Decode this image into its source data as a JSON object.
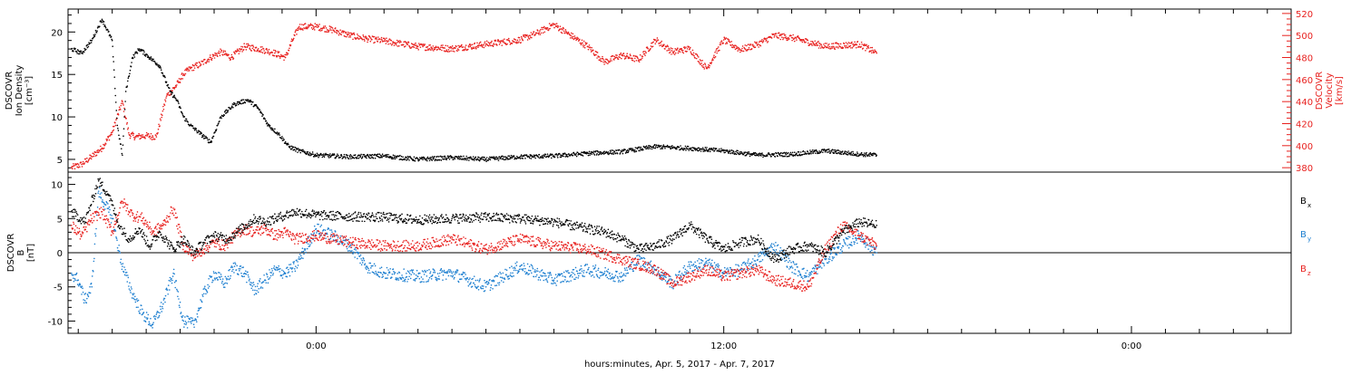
{
  "chart_data": [
    {
      "type": "scatter",
      "panel": "top",
      "xlabel": "hours:minutes, Apr.  5, 2017 - Apr.  7, 2017",
      "x_ticks": [
        "0:00",
        "12:00",
        "0:00"
      ],
      "x_range_hours": [
        -7.3,
        28.7
      ],
      "ylabel_left": [
        "DSCOVR",
        "Ion Density",
        "[cm⁻³]"
      ],
      "ylabel_right": [
        "DSCOVR",
        "Velocity",
        "[km/s]"
      ],
      "yticks_left": [
        5,
        10,
        15,
        20
      ],
      "ylim_left": [
        3.5,
        22.7
      ],
      "yticks_right": [
        380,
        400,
        420,
        440,
        460,
        480,
        500,
        520
      ],
      "ylim_right": [
        376,
        524
      ],
      "series": [
        {
          "name": "Ion Density",
          "axis": "left",
          "color": "#000000",
          "t": [
            -7.2,
            -6.9,
            -6.6,
            -6.3,
            -6.0,
            -5.85,
            -5.7,
            -5.6,
            -5.4,
            -5.2,
            -4.9,
            -4.6,
            -4.3,
            -4.1,
            -3.9,
            -3.7,
            -3.4,
            -3.1,
            -2.8,
            -2.4,
            -2.0,
            -1.7,
            -1.4,
            -1.1,
            -0.8,
            -0.5,
            0.0,
            1.0,
            2.0,
            3.0,
            4.0,
            5.0,
            6.0,
            7.0,
            8.0,
            9.0,
            10.0,
            11.0,
            12.0,
            13.0,
            14.0,
            15.0,
            16.0,
            16.5
          ],
          "v": [
            18,
            17.5,
            19,
            21.5,
            19,
            9,
            5.5,
            13,
            17,
            18,
            17,
            16,
            13,
            12,
            10,
            9,
            8,
            7,
            10,
            11.5,
            12,
            11,
            9,
            8,
            6.5,
            6,
            5.5,
            5.3,
            5.4,
            5.0,
            5.2,
            5.0,
            5.3,
            5.4,
            5.7,
            5.9,
            6.5,
            6.3,
            6.0,
            5.5,
            5.6,
            6.0,
            5.6,
            5.5
          ]
        },
        {
          "name": "Velocity",
          "axis": "right",
          "color": "#e8201e",
          "t": [
            -7.2,
            -6.9,
            -6.6,
            -6.3,
            -6.0,
            -5.7,
            -5.5,
            -5.3,
            -5.0,
            -4.7,
            -4.4,
            -4.1,
            -3.9,
            -3.7,
            -3.4,
            -3.1,
            -2.8,
            -2.5,
            -2.1,
            -1.7,
            -1.3,
            -0.9,
            -0.7,
            -0.5,
            0.0,
            0.5,
            1.0,
            1.5,
            2.0,
            3.0,
            4.0,
            5.0,
            6.0,
            6.5,
            7.0,
            7.5,
            8.0,
            8.5,
            9.0,
            9.5,
            10.0,
            10.5,
            11.0,
            11.5,
            12.0,
            12.5,
            13.0,
            13.5,
            14.0,
            15.0,
            16.0,
            16.5
          ],
          "v": [
            380,
            383,
            390,
            398,
            412,
            440,
            410,
            408,
            409,
            408,
            445,
            455,
            465,
            470,
            474,
            480,
            485,
            480,
            490,
            488,
            485,
            480,
            495,
            508,
            508,
            505,
            500,
            497,
            495,
            490,
            488,
            492,
            496,
            502,
            510,
            500,
            490,
            476,
            482,
            478,
            496,
            485,
            488,
            470,
            496,
            487,
            492,
            500,
            498,
            490,
            492,
            484
          ]
        }
      ]
    },
    {
      "type": "scatter",
      "panel": "bottom",
      "xlabel": "hours:minutes, Apr.  5, 2017 - Apr.  7, 2017",
      "x_ticks": [
        "0:00",
        "12:00",
        "0:00"
      ],
      "x_range_hours": [
        -7.3,
        28.7
      ],
      "ylabel": [
        "DSCOVR",
        "B",
        "[nT]"
      ],
      "yticks": [
        -10,
        -5,
        0,
        5,
        10
      ],
      "ylim": [
        -11.8,
        11.8
      ],
      "zero_line": true,
      "series": [
        {
          "name": "Bx",
          "color": "#000000",
          "t": [
            -7.2,
            -6.8,
            -6.4,
            -6.1,
            -5.8,
            -5.5,
            -5.2,
            -4.9,
            -4.6,
            -4.2,
            -3.9,
            -3.6,
            -3.3,
            -3.0,
            -2.6,
            -2.2,
            -1.8,
            -1.5,
            -1.2,
            -0.9,
            -0.6,
            0.0,
            1.0,
            2.0,
            3.0,
            4.0,
            5.0,
            6.0,
            7.0,
            8.0,
            8.5,
            9.0,
            9.5,
            10.0,
            10.5,
            11.0,
            11.5,
            12.0,
            12.5,
            13.0,
            13.5,
            14.0,
            14.5,
            15.0,
            15.5,
            16.0,
            16.5
          ],
          "v": [
            6.0,
            4.5,
            10.5,
            8.5,
            4.0,
            2.0,
            3.5,
            1.0,
            3.0,
            0.5,
            2.0,
            0.0,
            1.5,
            2.5,
            2.0,
            3.5,
            5.0,
            4.5,
            5.0,
            5.5,
            6.0,
            5.5,
            5.3,
            5.2,
            4.8,
            5.0,
            5.2,
            5.0,
            4.5,
            3.5,
            3.0,
            2.0,
            0.5,
            1.0,
            2.0,
            4.0,
            2.0,
            0.5,
            1.5,
            2.0,
            -1.0,
            0.5,
            1.0,
            0.0,
            3.0,
            4.5,
            4.0
          ]
        },
        {
          "name": "By",
          "color": "#1d7fd0",
          "t": [
            -7.2,
            -7.0,
            -6.8,
            -6.6,
            -6.4,
            -6.2,
            -6.0,
            -5.7,
            -5.4,
            -5.1,
            -4.8,
            -4.5,
            -4.2,
            -3.9,
            -3.6,
            -3.3,
            -3.0,
            -2.7,
            -2.4,
            -2.1,
            -1.8,
            -1.5,
            -1.2,
            -0.9,
            -0.6,
            0.0,
            0.5,
            1.0,
            1.5,
            2.0,
            3.0,
            4.0,
            5.0,
            6.0,
            7.0,
            8.0,
            9.0,
            9.5,
            10.0,
            10.5,
            11.0,
            11.5,
            12.0,
            12.5,
            13.0,
            13.5,
            14.0,
            14.5,
            15.0,
            15.5,
            16.0,
            16.5
          ],
          "v": [
            -3.0,
            -4.0,
            -7.0,
            -5.0,
            9.0,
            7.0,
            5.0,
            -2.0,
            -6.0,
            -9.0,
            -10.5,
            -7.5,
            -3.0,
            -10.0,
            -10.5,
            -6.0,
            -3.0,
            -4.5,
            -2.0,
            -3.0,
            -5.5,
            -4.0,
            -2.5,
            -3.0,
            -2.0,
            3.5,
            2.5,
            1.0,
            -2.0,
            -3.0,
            -3.5,
            -3.0,
            -5.0,
            -2.0,
            -4.0,
            -2.5,
            -3.5,
            -1.0,
            -2.5,
            -4.5,
            -2.0,
            -1.5,
            -3.0,
            -2.5,
            -1.0,
            1.0,
            -2.0,
            -3.5,
            -1.0,
            1.0,
            2.5,
            0.0
          ]
        },
        {
          "name": "Bz",
          "color": "#e8201e",
          "t": [
            -7.2,
            -6.9,
            -6.6,
            -6.3,
            -6.0,
            -5.7,
            -5.4,
            -5.1,
            -4.8,
            -4.5,
            -4.2,
            -3.9,
            -3.6,
            -3.3,
            -3.0,
            -2.7,
            -2.4,
            -2.1,
            -1.8,
            -1.5,
            -1.2,
            -0.9,
            -0.6,
            0.0,
            1.0,
            2.0,
            3.0,
            4.0,
            5.0,
            6.0,
            7.0,
            8.0,
            9.0,
            10.0,
            10.5,
            11.0,
            11.5,
            12.0,
            12.5,
            13.0,
            13.5,
            14.0,
            14.5,
            15.0,
            15.5,
            16.0,
            16.5
          ],
          "v": [
            4.0,
            2.5,
            5.0,
            6.0,
            3.0,
            7.5,
            5.5,
            5.0,
            3.0,
            4.0,
            6.5,
            1.0,
            -0.5,
            0.5,
            1.5,
            1.0,
            2.5,
            3.5,
            3.0,
            3.5,
            2.5,
            3.0,
            2.0,
            2.5,
            1.5,
            1.0,
            1.0,
            2.0,
            0.5,
            2.0,
            1.0,
            0.5,
            -1.0,
            -2.5,
            -4.5,
            -3.5,
            -2.5,
            -3.5,
            -3.0,
            -2.5,
            -4.0,
            -4.5,
            -5.0,
            0.5,
            4.0,
            2.5,
            1.0
          ]
        }
      ]
    }
  ],
  "bottom_legend": [
    "B",
    "B",
    "B"
  ],
  "bottom_legend_sub": [
    "x",
    "y",
    "z"
  ]
}
